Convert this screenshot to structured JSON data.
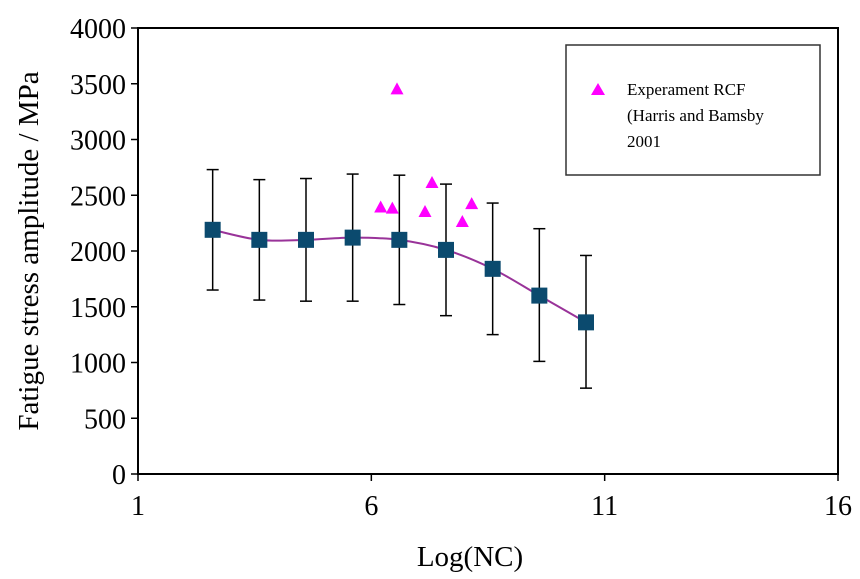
{
  "chart_data": {
    "type": "line",
    "title": "",
    "xlabel": "Log(NC)",
    "ylabel": "Fatigue stress amplitude / MPa",
    "xlim": [
      1,
      16
    ],
    "ylim": [
      0,
      4000
    ],
    "x_ticks": [
      "1",
      "6",
      "11",
      "16"
    ],
    "y_ticks": [
      "0",
      "500",
      "1000",
      "1500",
      "2000",
      "2500",
      "3000",
      "3500",
      "4000"
    ],
    "grid": false,
    "colors": {
      "line": "#993399",
      "marker": "#0b4a6e",
      "triangle": "#ff00ff",
      "errorbar": "#000000"
    },
    "series": [
      {
        "marker": "square",
        "x": [
          2.6,
          3.6,
          4.6,
          5.6,
          6.6,
          7.6,
          8.6,
          9.6,
          10.6
        ],
        "y": [
          2190,
          2100,
          2100,
          2120,
          2100,
          2010,
          1840,
          1600,
          1360
        ],
        "err_low": [
          1650,
          1560,
          1550,
          1550,
          1520,
          1420,
          1250,
          1010,
          770
        ],
        "err_high": [
          2730,
          2640,
          2650,
          2690,
          2680,
          2600,
          2430,
          2200,
          1960
        ]
      },
      {
        "name": "Experament RCF (Harris and Bamsby 2001",
        "marker": "triangle",
        "x": [
          6.2,
          6.45,
          6.55,
          7.15,
          7.3,
          7.95,
          8.15
        ],
        "y": [
          2390,
          2380,
          3450,
          2350,
          2610,
          2260,
          2420
        ]
      }
    ],
    "legend": {
      "position": "top-right",
      "lines": [
        "Experament RCF",
        "(Harris and Bamsby",
        "2001"
      ]
    }
  }
}
